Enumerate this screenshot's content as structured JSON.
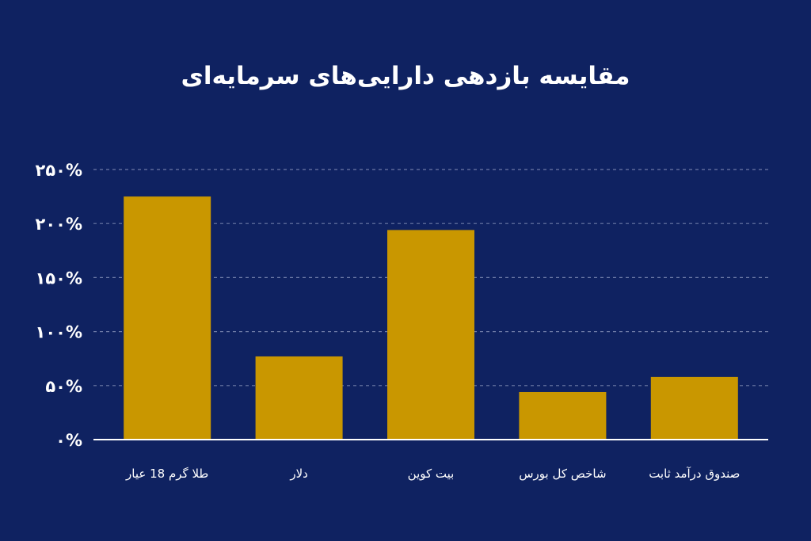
{
  "chart_data": {
    "type": "bar",
    "title": "مقایسه بازدهی دارایی‌های سرمایه‌ای",
    "xlabel": "",
    "ylabel": "",
    "categories": [
      "طلا گرم 18 عیار",
      "دلار",
      "بیت کوین",
      "شاخص کل بورس",
      "صندوق درآمد ثابت"
    ],
    "values": [
      225,
      77,
      194,
      44,
      58
    ],
    "ylim": [
      0,
      250
    ],
    "yticks": [
      0,
      50,
      100,
      150,
      200,
      250
    ],
    "ytick_labels": [
      "۰%",
      "۵۰%",
      "۱۰۰%",
      "۱۵۰%",
      "۲۰۰%",
      "۲۵۰%"
    ],
    "grid": true,
    "legend": "none",
    "colors": {
      "background": "#0f2261",
      "bar": "#c99700",
      "grid": "#6d7aa6",
      "axis": "#ffffff",
      "text": "#ffffff"
    }
  }
}
